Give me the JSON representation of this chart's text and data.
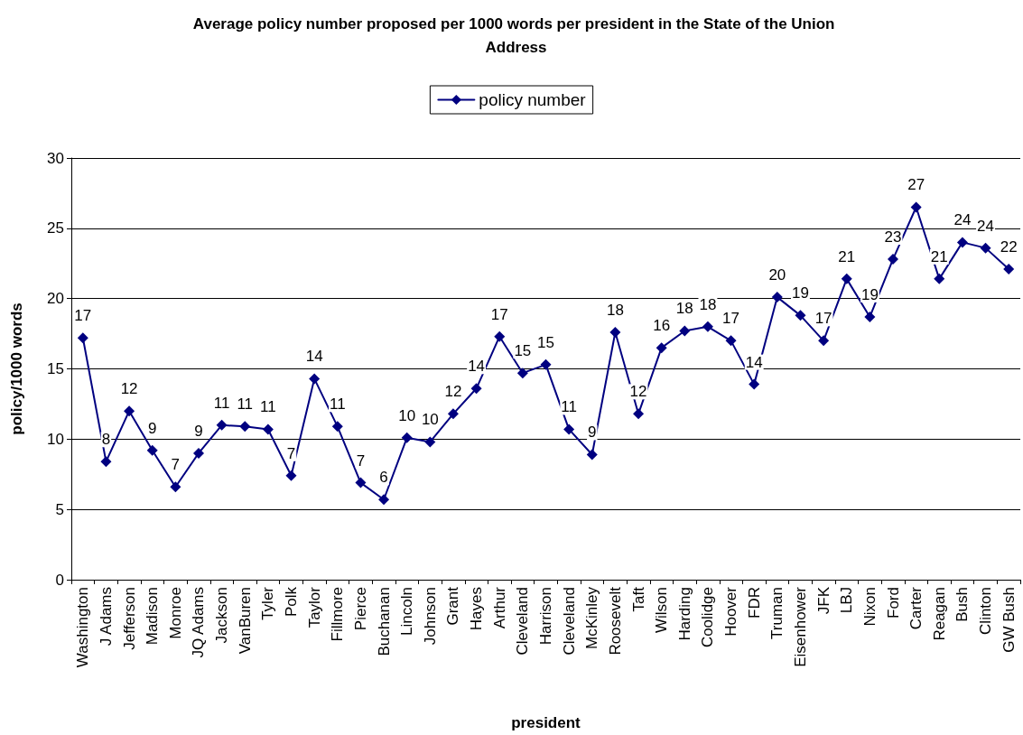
{
  "chart_data": {
    "type": "line",
    "title": "Average policy number proposed per 1000 words per president in the State of the Union Address",
    "xlabel": "president",
    "ylabel": "policy/1000 words",
    "categories": [
      "Washington",
      "J Adams",
      "Jefferson",
      "Madison",
      "Monroe",
      "JQ Adams",
      "Jackson",
      "VanBuren",
      "Tyler",
      "Polk",
      "Taylor",
      "Fillmore",
      "Pierce",
      "Buchanan",
      "Lincoln",
      "Johnson",
      "Grant",
      "Hayes",
      "Arthur",
      "Cleveland",
      "Harrison",
      "Cleveland",
      "McKinley",
      "Roosevelt",
      "Taft",
      "Wilson",
      "Harding",
      "Coolidge",
      "Hoover",
      "FDR",
      "Truman",
      "Eisenhower",
      "JFK",
      "LBJ",
      "Nixon",
      "Ford",
      "Carter",
      "Reagan",
      "Bush",
      "Clinton",
      "GW Bush"
    ],
    "series": [
      {
        "name": "policy number",
        "color": "#000080",
        "values": [
          17.2,
          8.4,
          12.0,
          9.2,
          6.6,
          9.0,
          11.0,
          10.9,
          10.7,
          7.4,
          14.3,
          10.9,
          6.9,
          5.7,
          10.1,
          9.8,
          11.8,
          13.6,
          17.3,
          14.7,
          15.3,
          10.7,
          8.9,
          17.6,
          11.8,
          16.5,
          17.7,
          18.0,
          17.0,
          13.9,
          20.1,
          18.8,
          17.0,
          21.4,
          18.7,
          22.8,
          26.5,
          21.4,
          24.0,
          23.6,
          22.1
        ],
        "value_labels": [
          "17",
          "8",
          "12",
          "9",
          "7",
          "9",
          "11",
          "11",
          "11",
          "7",
          "14",
          "11",
          "7",
          "6",
          "10",
          "10",
          "12",
          "14",
          "17",
          "15",
          "15",
          "11",
          "9",
          "18",
          "12",
          "16",
          "18",
          "18",
          "17",
          "14",
          "20",
          "19",
          "17",
          "21",
          "19",
          "23",
          "27",
          "21",
          "24",
          "24",
          "22"
        ]
      }
    ],
    "ylim": [
      0,
      30
    ],
    "yticks": [
      0,
      5,
      10,
      15,
      20,
      25,
      30
    ],
    "grid": "y",
    "legend": "top",
    "marker": "diamond",
    "line_style": "solid"
  }
}
